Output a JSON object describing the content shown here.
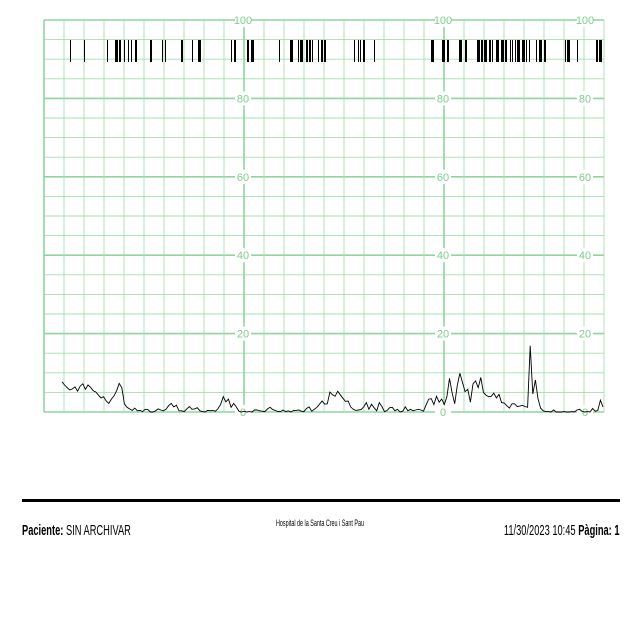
{
  "chart_data": {
    "type": "line",
    "title": "",
    "xlabel": "",
    "ylabel": "",
    "ylim": [
      0,
      100
    ],
    "grid": true,
    "y_ticks": [
      20,
      40,
      60,
      80,
      100
    ],
    "y_tick_label_columns": [
      [
        "100",
        "80",
        "60",
        "40",
        "20",
        "0"
      ],
      [
        "100",
        "80",
        "60",
        "40",
        "20",
        "0"
      ],
      [
        "100",
        "80",
        "60",
        "40",
        "20",
        "0"
      ]
    ],
    "series": [
      {
        "values": [
          7.7,
          6.9,
          6.2,
          5.6,
          5.9,
          6.4,
          5.3,
          6.6,
          7.2,
          5.8,
          6.9,
          6.3,
          5.4,
          5.1,
          4.3,
          3.6,
          3.9,
          2.8,
          2.2,
          3.3,
          4.1,
          5.4,
          7.3,
          6.2,
          2.1,
          1.2,
          0.8,
          0.4,
          1.0,
          0.3,
          0.4,
          0.1,
          0.7,
          0.6,
          0.0,
          0.0,
          0.3,
          0.8,
          0.5,
          0.3,
          0.7,
          1.6,
          2.2,
          1.3,
          1.7,
          0.3,
          0.3,
          0.1,
          0.8,
          1.4,
          0.7,
          0.8,
          1.1,
          0.3,
          0.1,
          0.0,
          0.4,
          0.3,
          0.4,
          0.2,
          0.9,
          2.0,
          3.9,
          2.6,
          3.3,
          1.2,
          2.2,
          1.3,
          0.2,
          0.0,
          0.2,
          0.0,
          0.1,
          0.0,
          0.5,
          0.5,
          0.3,
          0.2,
          0.1,
          0.8,
          1.2,
          0.6,
          0.4,
          0.1,
          0.1,
          0.5,
          0.1,
          0.3,
          0.0,
          0.4,
          0.4,
          0.5,
          0.2,
          0.1,
          0.9,
          1.3,
          0.2,
          0.7,
          1.2,
          2.0,
          2.8,
          2.0,
          2.1,
          5.1,
          4.4,
          4.0,
          5.3,
          4.4,
          3.5,
          2.7,
          2.8,
          1.3,
          0.7,
          0.4,
          0.5,
          0.6,
          1.3,
          2.4,
          0.7,
          2.0,
          1.1,
          0.3,
          2.4,
          1.4,
          0.1,
          0.4,
          1.1,
          1.2,
          0.3,
          0.7,
          0.0,
          0.2,
          1.3,
          0.3,
          0.7,
          0.3,
          0.5,
          0.7,
          0.5,
          0.2,
          1.8,
          3.3,
          3.4,
          1.9,
          4.0,
          2.5,
          3.3,
          1.9,
          3.9,
          8.6,
          4.9,
          2.1,
          6.8,
          9.9,
          7.5,
          5.2,
          5.8,
          2.5,
          7.2,
          7.9,
          6.2,
          8.8,
          5.0,
          4.3,
          3.9,
          4.0,
          4.8,
          3.6,
          4.5,
          2.4,
          2.3,
          1.6,
          1.0,
          2.1,
          2.1,
          1.4,
          1.5,
          1.7,
          1.4,
          1.2,
          16.9,
          4.6,
          8.2,
          3.4,
          1.0,
          0.3,
          0.1,
          0.1,
          0.0,
          0.5,
          0.0,
          0.0,
          0.0,
          0.1,
          0.0,
          0.0,
          0.1,
          0.0,
          0.5,
          0.7,
          0.1,
          0.0,
          0.1,
          0.0,
          0.9,
          0.2,
          0.4,
          3.0,
          1.3
        ]
      }
    ]
  },
  "footer": {
    "patient_label": "Paciente:",
    "patient_value": "SIN ARCHIVAR",
    "hospital": "Hospital de la Santa Creu i Sant Pau",
    "datetime": "11/30/2023 10:45",
    "page_label": "Pàgina:",
    "page_value": "1"
  },
  "colors": {
    "grid": "#a8ddb2",
    "grid_major": "#8fd59c",
    "tick_label": "#7ccf8a",
    "trace": "#000000",
    "marker_band": "#000000"
  }
}
